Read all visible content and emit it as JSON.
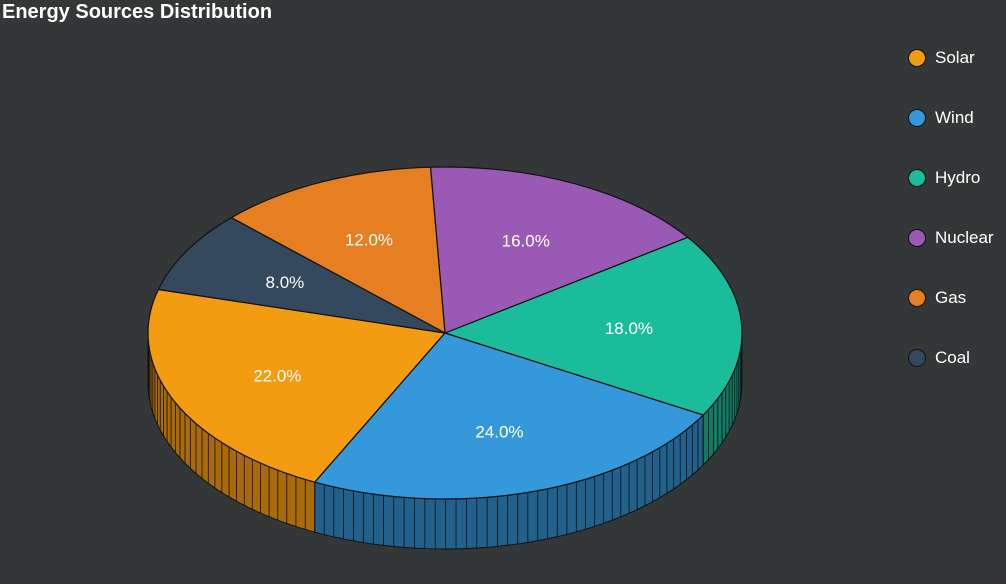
{
  "chart_data": {
    "type": "pie",
    "title": "Energy Sources Distribution",
    "categories": [
      "Solar",
      "Wind",
      "Hydro",
      "Nuclear",
      "Gas",
      "Coal"
    ],
    "values": [
      22.0,
      24.0,
      18.0,
      16.0,
      12.0,
      8.0
    ],
    "value_suffix": "%",
    "colors": [
      "#f39c12",
      "#3498db",
      "#1abc9c",
      "#9b59b6",
      "#e67e22",
      "#34495e"
    ],
    "side_colors": [
      "#a86a0a",
      "#21618c",
      "#127a65",
      "#6c3d80",
      "#9c5414",
      "#222f3d"
    ],
    "legend_position": "right",
    "style": "3d"
  }
}
